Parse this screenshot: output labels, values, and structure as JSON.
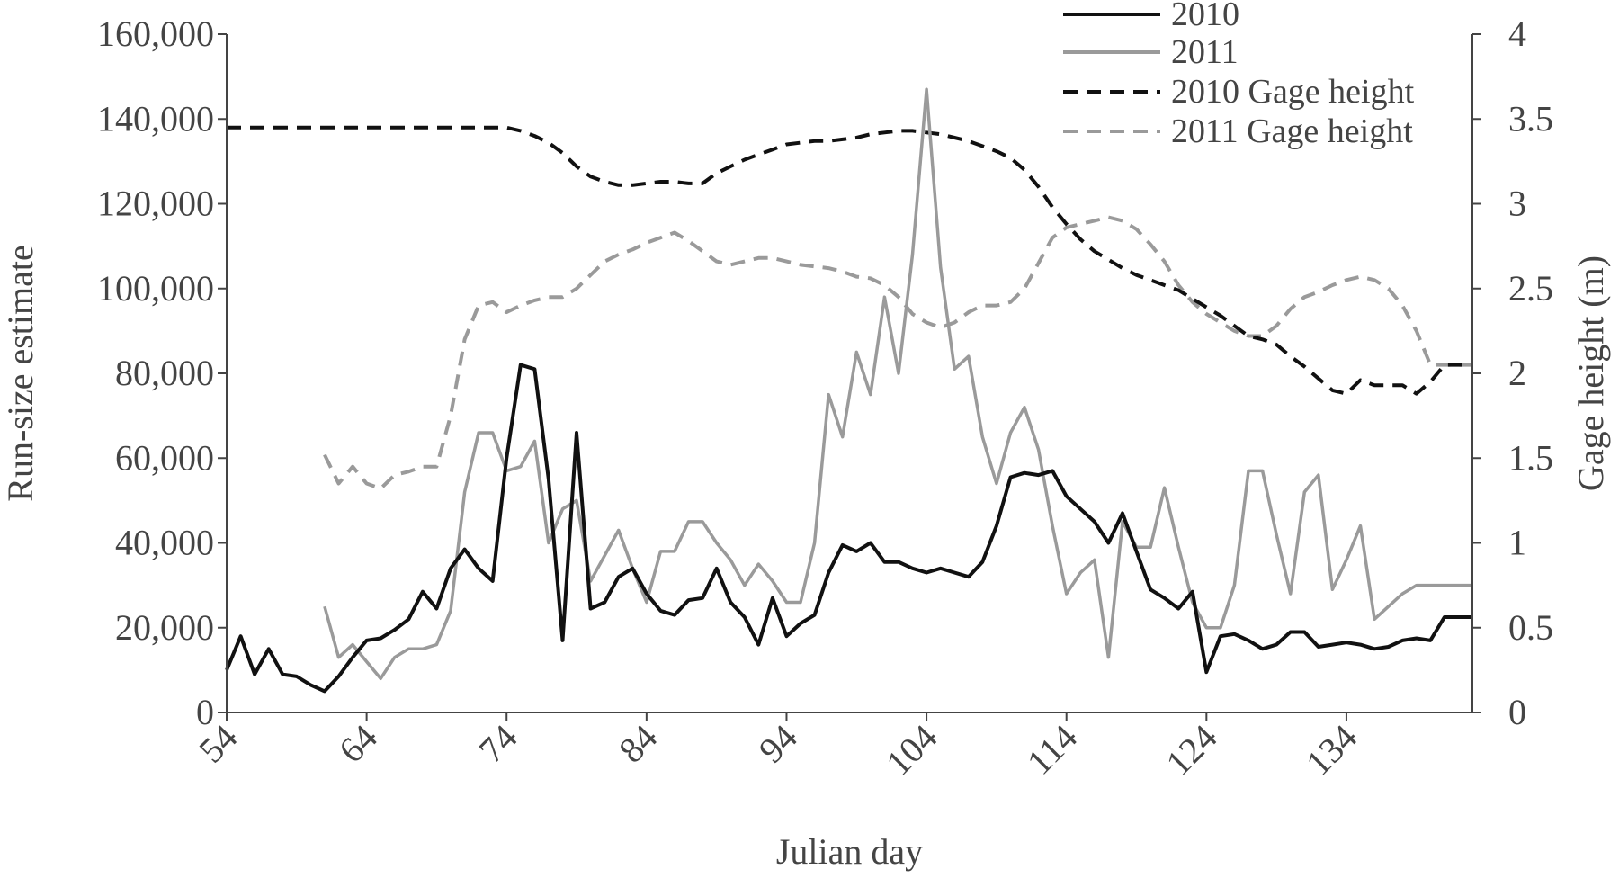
{
  "chart_data": {
    "type": "line",
    "xlabel": "Julian  day",
    "ylabel": "Run-size  estimate",
    "y2label": "Gage  height  (m)",
    "xlim": [
      54,
      143
    ],
    "ylim": [
      0,
      160000
    ],
    "y2lim": [
      0,
      4
    ],
    "x_ticks": [
      54,
      64,
      74,
      84,
      94,
      104,
      114,
      124,
      134
    ],
    "x_tick_labels": [
      "54",
      "64",
      "74",
      "84",
      "94",
      "104",
      "114",
      "124",
      "134"
    ],
    "y_ticks": [
      0,
      20000,
      40000,
      60000,
      80000,
      100000,
      120000,
      140000,
      160000
    ],
    "y_tick_labels": [
      "0",
      "20,000",
      "40,000",
      "60,000",
      "80,000",
      "100,000",
      "120,000",
      "140,000",
      "160,000"
    ],
    "y2_ticks": [
      0,
      0.5,
      1,
      1.5,
      2,
      2.5,
      3,
      3.5,
      4
    ],
    "y2_tick_labels": [
      "0",
      "0.5",
      "1",
      "1.5",
      "2",
      "2.5",
      "3",
      "3.5",
      "4"
    ],
    "grid": false,
    "legend_position": "top-right",
    "series": [
      {
        "name": "2010",
        "axis": "left",
        "color": "#111111",
        "dash": "solid",
        "x": [
          54,
          55,
          56,
          57,
          58,
          59,
          60,
          61,
          62,
          63,
          64,
          65,
          66,
          67,
          68,
          69,
          70,
          71,
          72,
          73,
          74,
          75,
          76,
          77,
          78,
          79,
          80,
          81,
          82,
          83,
          84,
          85,
          86,
          87,
          88,
          89,
          90,
          91,
          92,
          93,
          94,
          95,
          96,
          97,
          98,
          99,
          100,
          101,
          102,
          103,
          104,
          105,
          106,
          107,
          108,
          109,
          110,
          111,
          112,
          113,
          114,
          115,
          116,
          117,
          118,
          119,
          120,
          121,
          122,
          123,
          124,
          125,
          126,
          127,
          128,
          129,
          130,
          131,
          132,
          133,
          134,
          135,
          136,
          137,
          138,
          139,
          140,
          141,
          142,
          143
        ],
        "y": [
          10000,
          18000,
          9000,
          15000,
          9000,
          8500,
          6500,
          5000,
          8500,
          13000,
          17000,
          17500,
          19500,
          22000,
          28500,
          24500,
          34000,
          38500,
          34000,
          31000,
          60000,
          82000,
          81000,
          55000,
          17000,
          66000,
          24500,
          26000,
          32000,
          34000,
          28000,
          24000,
          23000,
          26500,
          27000,
          34000,
          26000,
          22500,
          16000,
          27000,
          18000,
          21000,
          23000,
          33000,
          39500,
          38000,
          40000,
          35500,
          35500,
          34000,
          33000,
          34000,
          33000,
          32000,
          35500,
          44000,
          55500,
          56500,
          56000,
          57000,
          51000,
          48000,
          45000,
          40000,
          47000,
          38000,
          29000,
          27000,
          24500,
          28500,
          9500,
          18000,
          18500,
          17000,
          15000,
          16000,
          19000,
          19000,
          15500,
          16000,
          16500,
          16000,
          15000,
          15500,
          17000,
          17500,
          17000,
          22500,
          22500,
          22500
        ]
      },
      {
        "name": "2011",
        "axis": "left",
        "color": "#9a9a9a",
        "dash": "solid",
        "x": [
          61,
          62,
          63,
          64,
          65,
          66,
          67,
          68,
          69,
          70,
          71,
          72,
          73,
          74,
          75,
          76,
          77,
          78,
          79,
          80,
          81,
          82,
          83,
          84,
          85,
          86,
          87,
          88,
          89,
          90,
          91,
          92,
          93,
          94,
          95,
          96,
          97,
          98,
          99,
          100,
          101,
          102,
          103,
          104,
          105,
          106,
          107,
          108,
          109,
          110,
          111,
          112,
          113,
          114,
          115,
          116,
          117,
          118,
          119,
          120,
          121,
          122,
          123,
          124,
          125,
          126,
          127,
          128,
          129,
          130,
          131,
          132,
          133,
          134,
          135,
          136,
          137,
          138,
          139,
          140,
          141,
          142,
          143
        ],
        "y": [
          25000,
          13000,
          16000,
          12000,
          8000,
          13000,
          15000,
          15000,
          16000,
          24000,
          52000,
          66000,
          66000,
          57000,
          58000,
          64000,
          40000,
          48000,
          50000,
          31000,
          37000,
          43000,
          34000,
          26000,
          38000,
          38000,
          45000,
          45000,
          40000,
          36000,
          30000,
          35000,
          31000,
          26000,
          26000,
          40000,
          75000,
          65000,
          85000,
          75000,
          98000,
          80000,
          108000,
          147000,
          105000,
          81000,
          84000,
          65000,
          54000,
          66000,
          72000,
          62000,
          44000,
          28000,
          33000,
          36000,
          13000,
          45000,
          39000,
          39000,
          53000,
          39000,
          26000,
          20000,
          20000,
          30000,
          57000,
          57000,
          42000,
          28000,
          52000,
          56000,
          29000,
          36000,
          44000,
          22000,
          25000,
          28000,
          30000,
          30000,
          30000,
          30000,
          30000
        ]
      },
      {
        "name": "2010 Gage height",
        "axis": "right",
        "color": "#111111",
        "dash": "dashed",
        "x": [
          54,
          56,
          58,
          60,
          62,
          64,
          66,
          68,
          70,
          72,
          74,
          75,
          76,
          77,
          78,
          79,
          80,
          81,
          82,
          83,
          84,
          85,
          86,
          87,
          88,
          89,
          90,
          91,
          92,
          93,
          94,
          95,
          96,
          97,
          98,
          99,
          100,
          101,
          102,
          103,
          104,
          105,
          106,
          107,
          108,
          109,
          110,
          111,
          112,
          113,
          114,
          115,
          116,
          117,
          118,
          119,
          120,
          121,
          122,
          123,
          124,
          125,
          126,
          127,
          128,
          129,
          130,
          131,
          132,
          133,
          134,
          135,
          136,
          137,
          138,
          139,
          140,
          141,
          142,
          143
        ],
        "y": [
          3.45,
          3.45,
          3.45,
          3.45,
          3.45,
          3.45,
          3.45,
          3.45,
          3.45,
          3.45,
          3.45,
          3.43,
          3.4,
          3.36,
          3.3,
          3.22,
          3.16,
          3.13,
          3.11,
          3.11,
          3.12,
          3.13,
          3.13,
          3.12,
          3.12,
          3.18,
          3.22,
          3.26,
          3.29,
          3.32,
          3.35,
          3.36,
          3.37,
          3.37,
          3.38,
          3.39,
          3.41,
          3.42,
          3.43,
          3.43,
          3.42,
          3.41,
          3.39,
          3.37,
          3.34,
          3.31,
          3.27,
          3.2,
          3.1,
          2.98,
          2.88,
          2.79,
          2.72,
          2.67,
          2.62,
          2.58,
          2.55,
          2.52,
          2.49,
          2.44,
          2.39,
          2.34,
          2.28,
          2.22,
          2.2,
          2.17,
          2.1,
          2.04,
          1.97,
          1.9,
          1.88,
          1.96,
          1.93,
          1.93,
          1.93,
          1.88,
          1.95,
          2.05,
          2.05,
          2.05
        ]
      },
      {
        "name": "2011 Gage height",
        "axis": "right",
        "color": "#9a9a9a",
        "dash": "dashed",
        "x": [
          61,
          62,
          63,
          64,
          65,
          66,
          67,
          68,
          69,
          70,
          71,
          72,
          73,
          74,
          75,
          76,
          77,
          78,
          79,
          80,
          81,
          82,
          83,
          84,
          85,
          86,
          87,
          88,
          89,
          90,
          91,
          92,
          93,
          94,
          95,
          96,
          97,
          98,
          99,
          100,
          101,
          102,
          103,
          104,
          105,
          106,
          107,
          108,
          109,
          110,
          111,
          112,
          113,
          114,
          115,
          116,
          117,
          118,
          119,
          120,
          121,
          122,
          123,
          124,
          125,
          126,
          127,
          128,
          129,
          130,
          131,
          132,
          133,
          134,
          135,
          136,
          137,
          138,
          139,
          140,
          141,
          142,
          143
        ],
        "y": [
          1.52,
          1.35,
          1.45,
          1.35,
          1.32,
          1.4,
          1.42,
          1.45,
          1.45,
          1.75,
          2.2,
          2.4,
          2.42,
          2.36,
          2.4,
          2.43,
          2.45,
          2.45,
          2.5,
          2.58,
          2.66,
          2.7,
          2.73,
          2.77,
          2.8,
          2.83,
          2.78,
          2.72,
          2.66,
          2.64,
          2.66,
          2.68,
          2.68,
          2.66,
          2.64,
          2.63,
          2.62,
          2.6,
          2.57,
          2.56,
          2.52,
          2.45,
          2.35,
          2.3,
          2.27,
          2.3,
          2.36,
          2.4,
          2.4,
          2.42,
          2.5,
          2.65,
          2.8,
          2.86,
          2.88,
          2.9,
          2.92,
          2.9,
          2.85,
          2.76,
          2.66,
          2.52,
          2.42,
          2.35,
          2.3,
          2.25,
          2.22,
          2.22,
          2.28,
          2.38,
          2.45,
          2.48,
          2.52,
          2.55,
          2.57,
          2.55,
          2.5,
          2.4,
          2.25,
          2.05,
          2.05,
          2.05,
          2.05
        ]
      }
    ]
  }
}
